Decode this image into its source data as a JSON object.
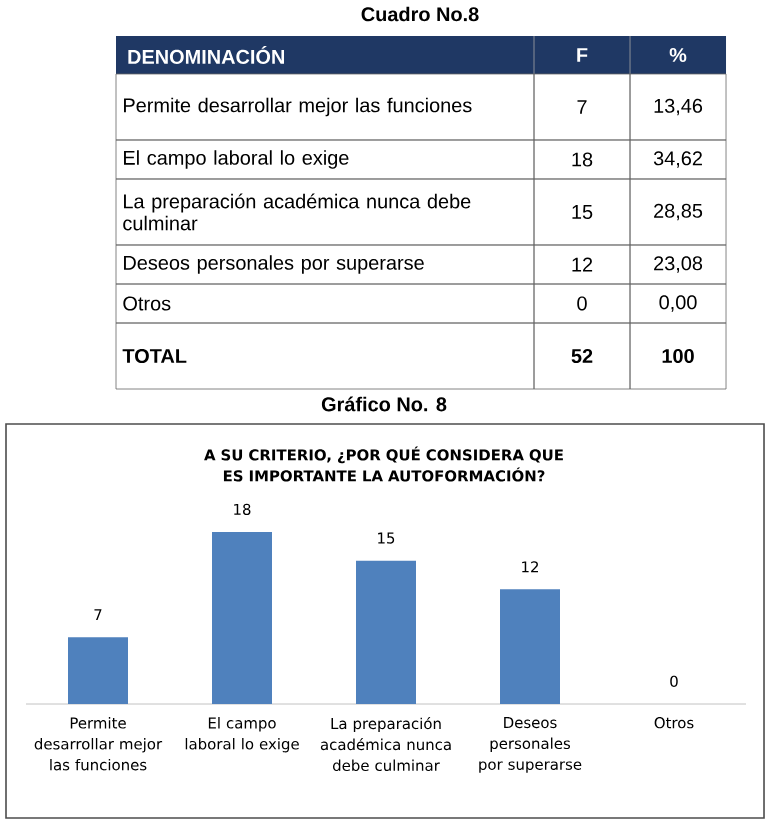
{
  "chart_data": [
    {
      "type": "other",
      "title": "Cuadro No.8",
      "annotations": [
        "DENOMINACIÓN",
        "F",
        "%",
        "Permite desarrollar mejor las funciones",
        "7",
        "13,46",
        "El campo laboral lo exige",
        "18",
        "34,62",
        "La preparación académica nunca debe culminar",
        "15",
        "28,85",
        "Deseos personales por superarse",
        "12",
        "23,08",
        "Otros",
        "0",
        "0,00",
        "TOTAL",
        "52",
        "100"
      ]
    },
    {
      "type": "bar",
      "title": "A SU CRITERIO, ¿POR QUÉ CONSIDERA QUE ES IMPORTANTE LA AUTOFORMACIÓN?",
      "annotations": [
        "Gráfico No. 8"
      ],
      "categories": [
        "Permite desarrollar mejor las funciones",
        "El campo laboral lo exige",
        "La preparación académica nunca debe culminar",
        "Deseos personales por superarse",
        "Otros"
      ],
      "values": [
        7,
        18,
        15,
        12,
        0
      ],
      "color": "#4f81bd",
      "data_labels": true
    }
  ]
}
